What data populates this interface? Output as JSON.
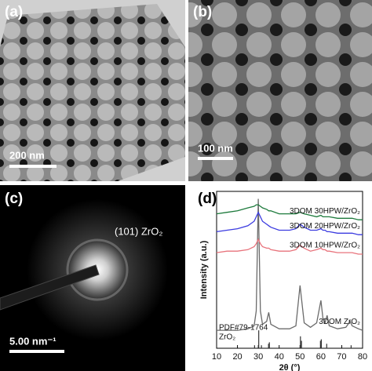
{
  "panels": [
    {
      "label": "(a)",
      "scale_bar": "200 nm"
    },
    {
      "label": "(b)",
      "scale_bar": "100 nm"
    },
    {
      "label": "(c)",
      "annotation": "(101) ZrO₂",
      "scale_bar": "5.00 nm⁻¹"
    },
    {
      "label": "(d)"
    }
  ],
  "chart_data": {
    "type": "line",
    "x_label": "2θ (°)",
    "y_label": "Intensity (a.u.)",
    "x": [
      10,
      15,
      20,
      25,
      28,
      29,
      30,
      31,
      32,
      34,
      35,
      36,
      40,
      45,
      48,
      50,
      52,
      55,
      58,
      60,
      61,
      62,
      63,
      64,
      68,
      72,
      74,
      75,
      78,
      80
    ],
    "xlim": [
      10,
      80
    ],
    "xticks": [
      10,
      20,
      30,
      40,
      50,
      60,
      70,
      80
    ],
    "ylim": [
      0,
      105
    ],
    "series": [
      {
        "name": "3DOM ZrO₂",
        "color": "#6b6b6b",
        "values": [
          12,
          12,
          12,
          13,
          15,
          25,
          100,
          25,
          16,
          18,
          24,
          16,
          13,
          13,
          15,
          42,
          17,
          14,
          17,
          32,
          20,
          17,
          22,
          15,
          13,
          14,
          18,
          15,
          13,
          12
        ]
      },
      {
        "name": "3DOM 10HPW/ZrO₂",
        "color": "#e8737c",
        "values": [
          64,
          65,
          65,
          66,
          68,
          70,
          73,
          70,
          68,
          67,
          67,
          66,
          65,
          65,
          66,
          69,
          67,
          65,
          66,
          67,
          66,
          66,
          65,
          65,
          64,
          64,
          64,
          64,
          63,
          63
        ]
      },
      {
        "name": "3DOM 20HPW/ZrO₂",
        "color": "#3b3be0",
        "values": [
          78,
          79,
          80,
          82,
          85,
          88,
          91,
          88,
          85,
          83,
          82,
          81,
          79,
          79,
          80,
          83,
          81,
          79,
          79,
          80,
          79,
          79,
          78,
          78,
          77,
          77,
          77,
          77,
          76,
          76
        ]
      },
      {
        "name": "3DOM 30HPW/ZrO₂",
        "color": "#1d7a3c",
        "values": [
          90,
          91,
          92,
          94,
          95,
          96,
          96,
          95,
          94,
          93,
          92,
          92,
          90,
          90,
          90,
          91,
          90,
          89,
          88,
          89,
          88,
          88,
          88,
          88,
          87,
          87,
          87,
          87,
          86,
          86
        ]
      }
    ],
    "reference": {
      "name": [
        "PDF#79-1764",
        "ZrO₂"
      ],
      "color": "#333333",
      "x": [
        28.2,
        30.2,
        31.5,
        34.9,
        35.3,
        50.2,
        50.7,
        59.8,
        60.2,
        62.8,
        74.5
      ],
      "values": [
        2,
        12,
        2,
        3,
        4,
        8,
        5,
        5,
        6,
        3,
        2
      ]
    }
  }
}
